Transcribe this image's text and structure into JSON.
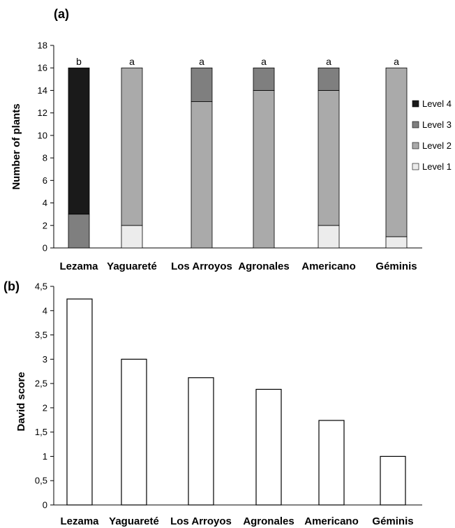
{
  "colors": {
    "level_4": "#1a1a1a",
    "level_3": "#7f7f7f",
    "level_2": "#aaaaaa",
    "level_1": "#ececec",
    "axis": "#000000",
    "bar_b": "#ffffff"
  },
  "chart_data": [
    {
      "id": "a",
      "panel_label": "(a)",
      "type": "bar",
      "stacked": true,
      "title": "",
      "xlabel": "",
      "ylabel": "Number of plants",
      "ylim": [
        0,
        18
      ],
      "yticks": [
        0,
        2,
        4,
        6,
        8,
        10,
        12,
        14,
        16,
        18
      ],
      "ytick_labels": [
        "0",
        "2",
        "4",
        "6",
        "8",
        "10",
        "12",
        "14",
        "16",
        "18"
      ],
      "grid": false,
      "legend_position": "right",
      "categories": [
        "Lezama",
        "Yaguareté",
        "Los Arroyos",
        "Agronales",
        "Americano",
        "Géminis"
      ],
      "significance": [
        "b",
        "a",
        "a",
        "a",
        "a",
        "a"
      ],
      "series": [
        {
          "name": "Level 1",
          "color": "#ececec",
          "values": [
            0,
            2,
            0,
            0,
            2,
            1
          ]
        },
        {
          "name": "Level 2",
          "color": "#aaaaaa",
          "values": [
            0,
            14,
            13,
            14,
            12,
            15
          ]
        },
        {
          "name": "Level 3",
          "color": "#7f7f7f",
          "values": [
            3,
            0,
            3,
            2,
            2,
            0
          ]
        },
        {
          "name": "Level 4",
          "color": "#1a1a1a",
          "values": [
            13,
            0,
            0,
            0,
            0,
            0
          ]
        }
      ],
      "legend_order": [
        "Level 4",
        "Level 3",
        "Level 2",
        "Level 1"
      ]
    },
    {
      "id": "b",
      "panel_label": "(b)",
      "type": "bar",
      "title": "",
      "xlabel": "",
      "ylabel": "David score",
      "ylim": [
        0,
        4.5
      ],
      "yticks": [
        0,
        0.5,
        1,
        1.5,
        2,
        2.5,
        3,
        3.5,
        4,
        4.5
      ],
      "ytick_labels": [
        "0",
        "0,5",
        "1",
        "1,5",
        "2",
        "2,5",
        "3",
        "3,5",
        "4",
        "4,5"
      ],
      "grid": false,
      "categories": [
        "Lezama",
        "Yaguareté",
        "Los Arroyos",
        "Agronales",
        "Americano",
        "Géminis"
      ],
      "values": [
        4.24,
        3.0,
        2.62,
        2.38,
        1.74,
        1.0
      ]
    }
  ]
}
